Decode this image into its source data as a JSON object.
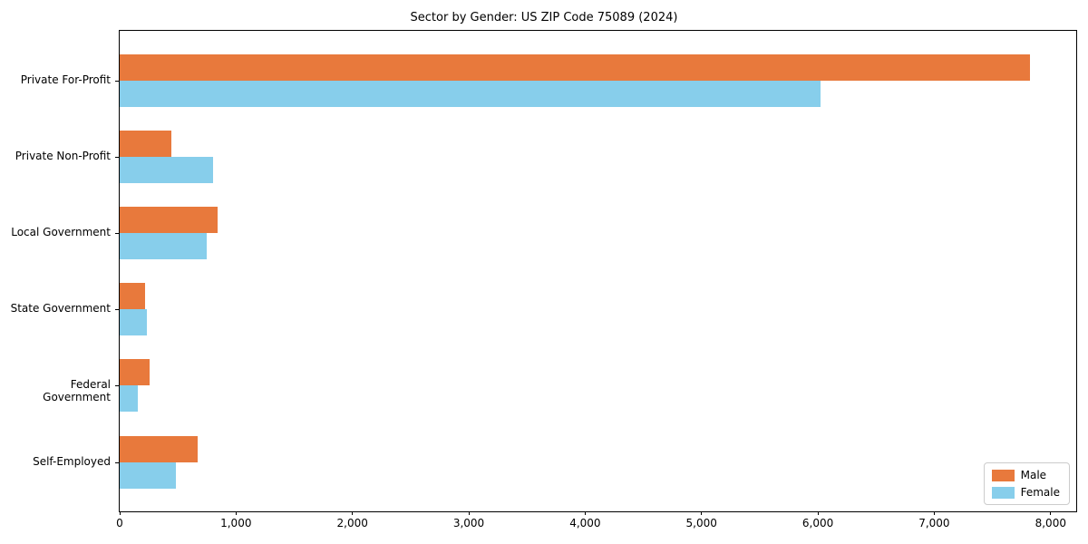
{
  "title": "Sector by Gender: US ZIP Code 75089 (2024)",
  "chart_data": {
    "type": "bar",
    "orientation": "horizontal",
    "title": "Sector by Gender: US ZIP Code 75089 (2024)",
    "categories": [
      "Private For-Profit",
      "Private Non-Profit",
      "Local Government",
      "State Government",
      "Federal Government",
      "Self-Employed"
    ],
    "series": [
      {
        "name": "Male",
        "color": "#e8793c",
        "values": [
          7820,
          440,
          840,
          220,
          255,
          670
        ]
      },
      {
        "name": "Female",
        "color": "#87ceeb",
        "values": [
          6020,
          800,
          750,
          235,
          155,
          480
        ]
      }
    ],
    "xlabel": "",
    "ylabel": "",
    "xlim": [
      0,
      8220
    ],
    "x_ticks": [
      0,
      1000,
      2000,
      3000,
      4000,
      5000,
      6000,
      7000,
      8000
    ],
    "x_tick_labels": [
      "0",
      "1,000",
      "2,000",
      "3,000",
      "4,000",
      "5,000",
      "6,000",
      "7,000",
      "8,000"
    ],
    "grid": false,
    "legend_position": "lower right"
  },
  "colors": {
    "male": "#e8793c",
    "female": "#87ceeb",
    "axis": "#000000",
    "legend_border": "#cccccc",
    "background": "#ffffff"
  }
}
